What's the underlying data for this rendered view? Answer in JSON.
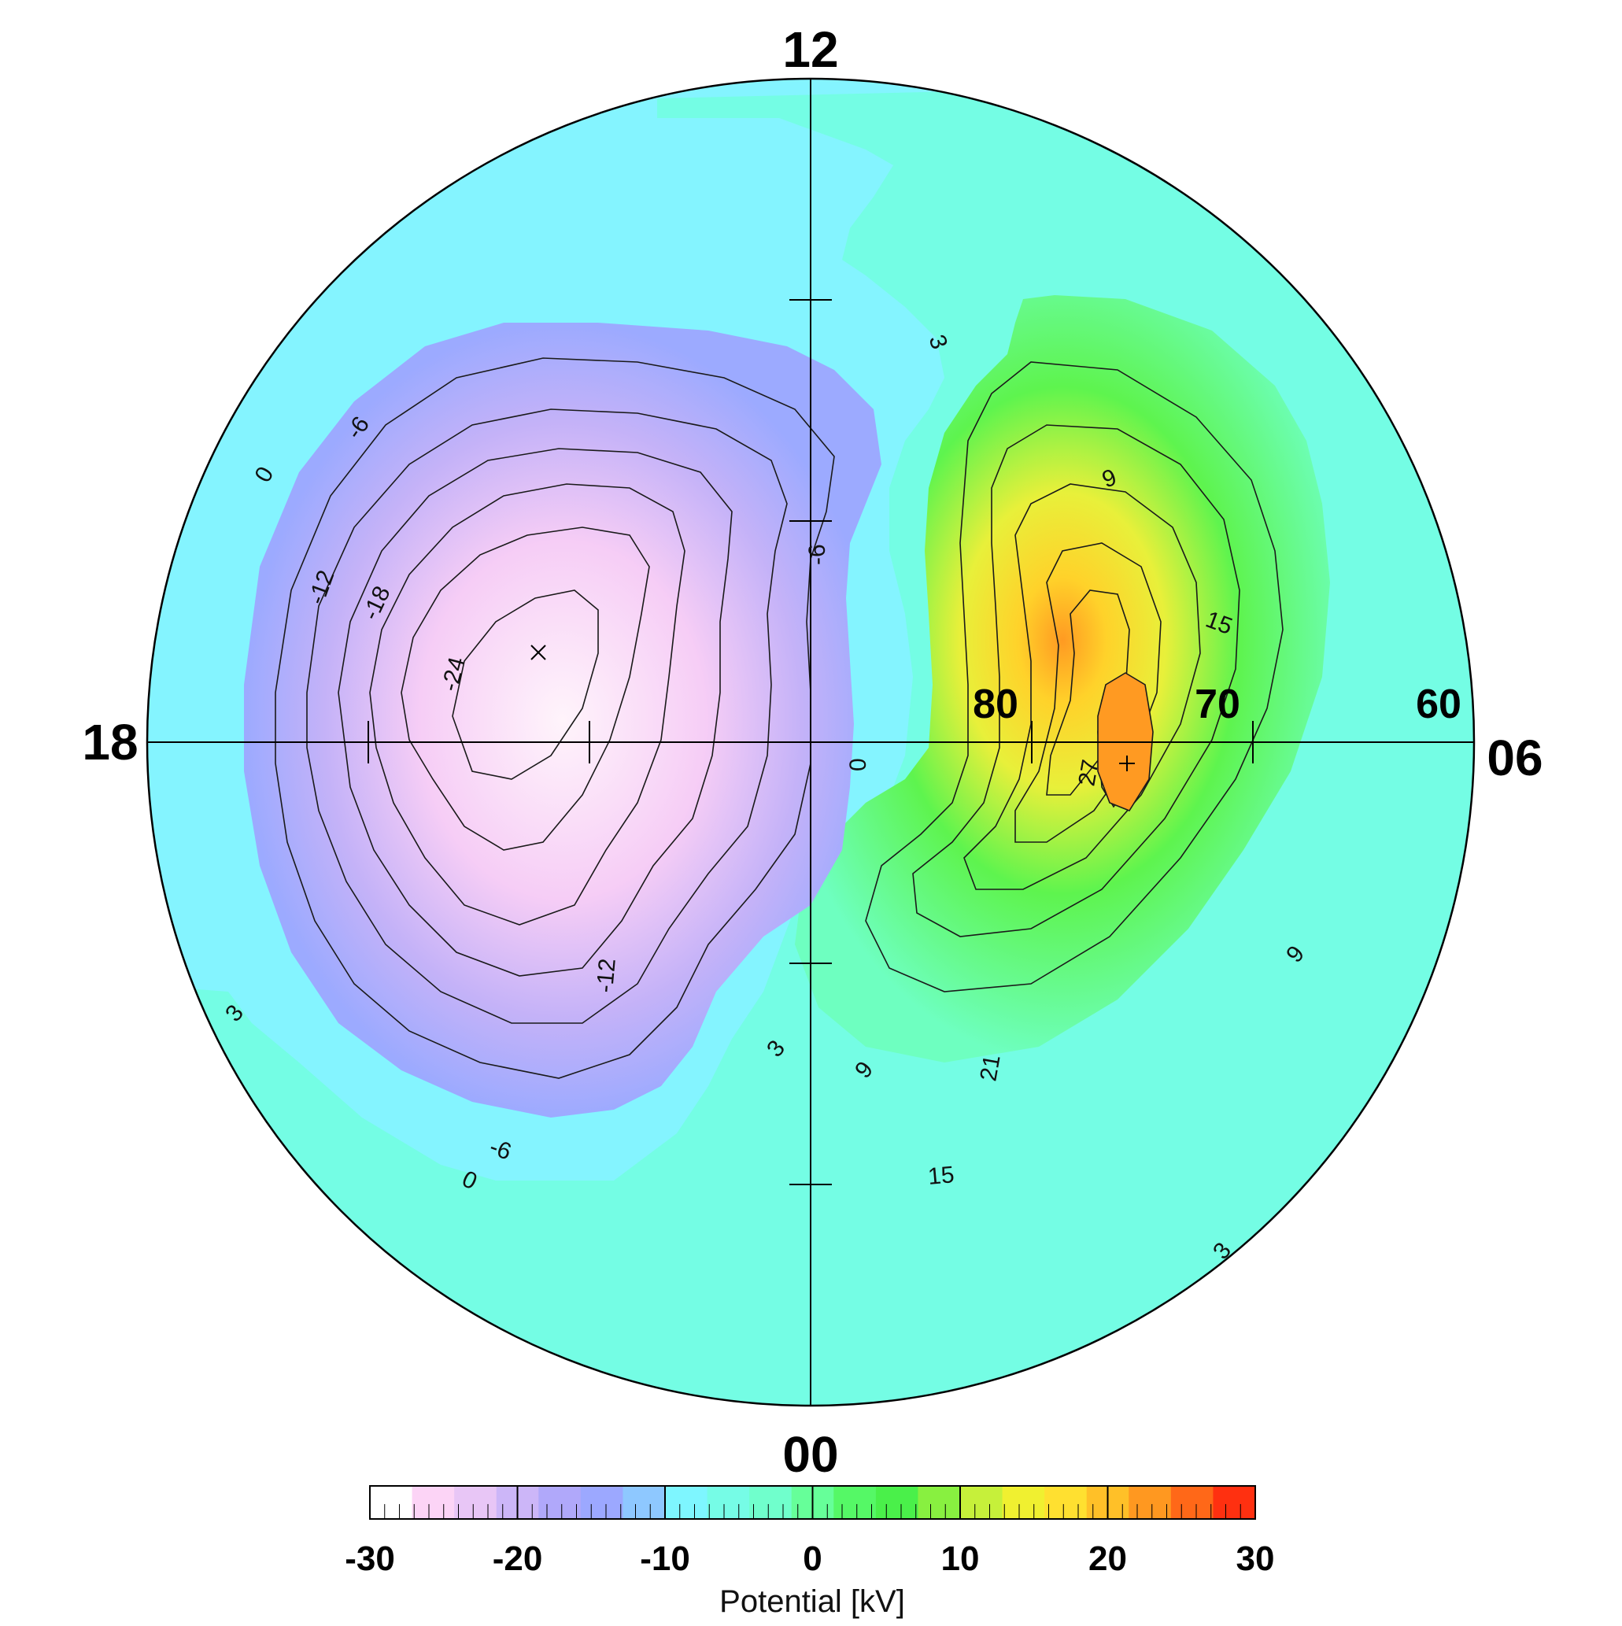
{
  "chart_data": {
    "type": "contour",
    "title": "",
    "mlt_labels": {
      "top": "12",
      "bottom": "00",
      "left": "18",
      "right": "06"
    },
    "latitude_labels": [
      "80",
      "70",
      "60"
    ],
    "latitude_circles": [
      80,
      70,
      60
    ],
    "contour_interval_kV": 3,
    "negative_cell": {
      "min_label": "-24",
      "contour_labels": [
        "0",
        "-6",
        "-12",
        "-18",
        "-24",
        "-6",
        "-12",
        "-6",
        "0"
      ]
    },
    "positive_cell": {
      "max_label": "27",
      "contour_labels": [
        "3",
        "9",
        "15",
        "21",
        "27",
        "9",
        "15",
        "9",
        "3",
        "3"
      ]
    },
    "zero_labels": [
      "0"
    ],
    "colorbar": {
      "title": "Potential [kV]",
      "range": [
        -30,
        30
      ],
      "ticks": [
        "-30",
        "-20",
        "-10",
        "0",
        "10",
        "20",
        "30"
      ],
      "colors": [
        "#ffffff",
        "#fcd4f6",
        "#e8c6f6",
        "#ccb6f8",
        "#b0a8fa",
        "#9ca8ff",
        "#8ec8ff",
        "#7ef6ff",
        "#76fce6",
        "#70ffcc",
        "#66ff99",
        "#55f866",
        "#4af04a",
        "#88f040",
        "#c6f03a",
        "#f0f030",
        "#ffe030",
        "#ffc028",
        "#ff9820",
        "#ff6818",
        "#ff3010"
      ]
    }
  }
}
